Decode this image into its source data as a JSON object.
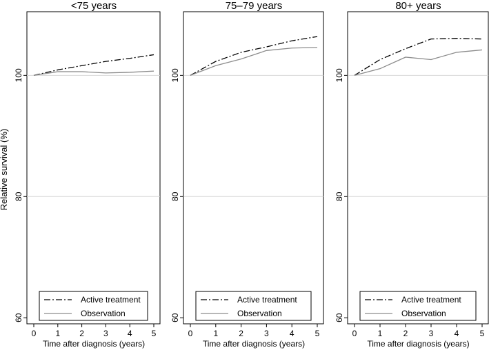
{
  "chart_data": {
    "type": "line",
    "ylabel": "Relative survival (%)",
    "xlabel": "Time after diagnosis (years)",
    "x": [
      0,
      1,
      2,
      3,
      4,
      5
    ],
    "xticks": [
      "0",
      "1",
      "2",
      "3",
      "4",
      "5"
    ],
    "xlim": [
      0,
      5
    ],
    "ylim": [
      59,
      110.5
    ],
    "yticks": [
      60,
      80,
      100
    ],
    "gridlines_y": [
      80,
      100
    ],
    "legend_placement": "bottom",
    "series_styles": {
      "Active treatment": {
        "color": "#000000",
        "dash": "9 3 2 3"
      },
      "Observation": {
        "color": "#8c8c8c",
        "dash": ""
      }
    },
    "panels": [
      {
        "title": "<75 years",
        "series": [
          {
            "name": "Active treatment",
            "values": [
              100,
              100.9,
              101.6,
              102.3,
              102.8,
              103.4
            ]
          },
          {
            "name": "Observation",
            "values": [
              100,
              100.6,
              100.6,
              100.4,
              100.5,
              100.7
            ]
          }
        ]
      },
      {
        "title": "75–79 years",
        "series": [
          {
            "name": "Active treatment",
            "values": [
              100,
              102.3,
              103.8,
              104.7,
              105.7,
              106.4
            ]
          },
          {
            "name": "Observation",
            "values": [
              100,
              101.6,
              102.7,
              104.1,
              104.5,
              104.6
            ]
          }
        ]
      },
      {
        "title": "80+ years",
        "series": [
          {
            "name": "Active treatment",
            "values": [
              100,
              102.6,
              104.4,
              106.0,
              106.1,
              106.0
            ]
          },
          {
            "name": "Observation",
            "values": [
              100,
              101.1,
              103.0,
              102.6,
              103.8,
              104.2
            ]
          }
        ]
      }
    ]
  }
}
